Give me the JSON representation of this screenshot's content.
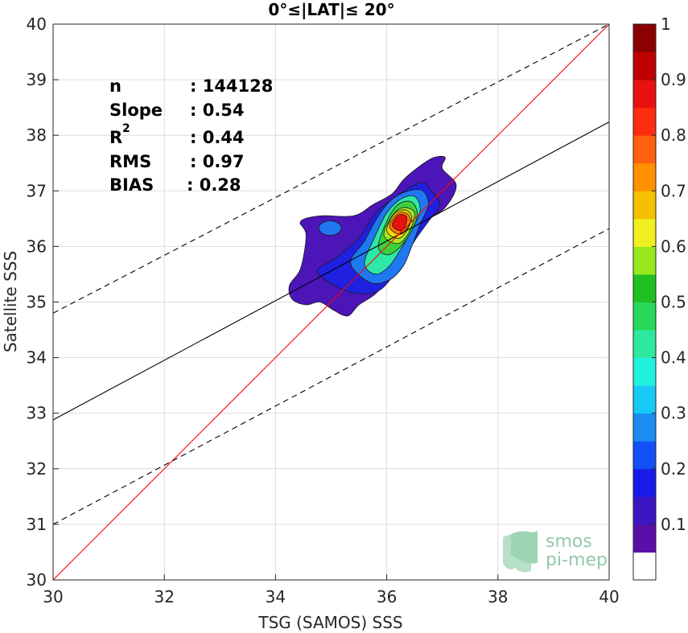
{
  "chart_data": {
    "type": "contour",
    "title": "0°≤|LAT|≤ 20°",
    "xlabel": "TSG (SAMOS) SSS",
    "ylabel": "Satellite SSS",
    "xlim": [
      30,
      40
    ],
    "ylim": [
      30,
      40
    ],
    "xticks": [
      "30",
      "32",
      "34",
      "36",
      "38",
      "40"
    ],
    "yticks": [
      "30",
      "31",
      "32",
      "33",
      "34",
      "35",
      "36",
      "37",
      "38",
      "39",
      "40"
    ],
    "grid": true,
    "stats": {
      "n_label": "n",
      "n_value": ": 144128",
      "slope_label": "Slope",
      "slope_value": ": 0.54",
      "r2_label": "R",
      "r2_sup": "2",
      "r2_value": ": 0.44",
      "rms_label": "RMS",
      "rms_value": ": 0.97",
      "bias_label": "BIAS",
      "bias_value": ": 0.28"
    },
    "lines": {
      "identity": {
        "x": [
          30,
          40
        ],
        "y": [
          30,
          40
        ],
        "color": "#ff0000"
      },
      "fit": {
        "x": [
          30,
          40
        ],
        "y": [
          32.88,
          38.24
        ],
        "color": "#000000"
      },
      "upper_bound": {
        "x": [
          30,
          40
        ],
        "y": [
          34.8,
          40.0
        ],
        "style": "dashed"
      },
      "lower_bound": {
        "x": [
          30,
          40
        ],
        "y": [
          31.0,
          36.32
        ],
        "style": "dashed"
      }
    },
    "density_contours": [
      {
        "level": 0.05,
        "color": "#4b15b7",
        "points": [
          [
            34.25,
            35.3
          ],
          [
            34.45,
            35.6
          ],
          [
            34.55,
            36.2
          ],
          [
            34.45,
            36.45
          ],
          [
            34.8,
            36.55
          ],
          [
            35.4,
            36.55
          ],
          [
            35.75,
            36.75
          ],
          [
            36.1,
            36.95
          ],
          [
            36.3,
            37.2
          ],
          [
            36.6,
            37.45
          ],
          [
            36.85,
            37.6
          ],
          [
            37.05,
            37.6
          ],
          [
            37.0,
            37.4
          ],
          [
            37.25,
            37.1
          ],
          [
            37.05,
            36.7
          ],
          [
            36.7,
            36.45
          ],
          [
            36.5,
            36.1
          ],
          [
            36.3,
            35.8
          ],
          [
            36.1,
            35.5
          ],
          [
            35.8,
            35.15
          ],
          [
            35.5,
            34.95
          ],
          [
            35.3,
            34.75
          ],
          [
            35.05,
            34.85
          ],
          [
            34.8,
            35.0
          ],
          [
            34.55,
            34.95
          ],
          [
            34.3,
            35.05
          ]
        ]
      },
      {
        "level": 0.1,
        "color": "#2020e0",
        "points": [
          [
            34.75,
            35.55
          ],
          [
            35.1,
            35.8
          ],
          [
            35.5,
            36.15
          ],
          [
            35.8,
            36.6
          ],
          [
            36.1,
            36.85
          ],
          [
            36.4,
            37.05
          ],
          [
            36.65,
            37.15
          ],
          [
            36.8,
            37.0
          ],
          [
            36.95,
            36.75
          ],
          [
            36.75,
            36.45
          ],
          [
            36.5,
            36.1
          ],
          [
            36.3,
            35.75
          ],
          [
            36.1,
            35.45
          ],
          [
            35.85,
            35.2
          ],
          [
            35.5,
            35.15
          ],
          [
            35.15,
            35.25
          ]
        ]
      },
      {
        "level": 0.2,
        "color": "#1f78f0",
        "points": [
          [
            35.35,
            35.7
          ],
          [
            35.6,
            36.1
          ],
          [
            35.85,
            36.55
          ],
          [
            36.1,
            36.85
          ],
          [
            36.4,
            37.0
          ],
          [
            36.65,
            37.0
          ],
          [
            36.75,
            36.75
          ],
          [
            36.6,
            36.4
          ],
          [
            36.45,
            36.0
          ],
          [
            36.3,
            35.65
          ],
          [
            36.05,
            35.4
          ],
          [
            35.7,
            35.35
          ]
        ]
      },
      {
        "level": 0.35,
        "color": "#2ee8a8",
        "points": [
          [
            35.6,
            35.7
          ],
          [
            35.8,
            36.2
          ],
          [
            36.0,
            36.6
          ],
          [
            36.25,
            36.85
          ],
          [
            36.5,
            36.9
          ],
          [
            36.6,
            36.65
          ],
          [
            36.45,
            36.3
          ],
          [
            36.25,
            35.95
          ],
          [
            36.05,
            35.65
          ],
          [
            35.8,
            35.5
          ]
        ]
      },
      {
        "level": 0.5,
        "color": "#3dd03d",
        "points": [
          [
            35.85,
            36.0
          ],
          [
            36.0,
            36.45
          ],
          [
            36.2,
            36.75
          ],
          [
            36.45,
            36.8
          ],
          [
            36.55,
            36.55
          ],
          [
            36.4,
            36.2
          ],
          [
            36.2,
            35.95
          ],
          [
            36.0,
            35.85
          ]
        ]
      },
      {
        "level": 0.6,
        "color": "#a8e620",
        "points": [
          [
            35.95,
            36.2
          ],
          [
            36.1,
            36.55
          ],
          [
            36.3,
            36.7
          ],
          [
            36.5,
            36.6
          ],
          [
            36.4,
            36.25
          ],
          [
            36.2,
            36.05
          ]
        ]
      },
      {
        "level": 0.7,
        "color": "#f5d90a",
        "points": [
          [
            36.0,
            36.3
          ],
          [
            36.15,
            36.6
          ],
          [
            36.35,
            36.65
          ],
          [
            36.45,
            36.5
          ],
          [
            36.3,
            36.2
          ],
          [
            36.15,
            36.15
          ]
        ]
      },
      {
        "level": 0.8,
        "color": "#ff7a00",
        "points": [
          [
            36.05,
            36.35
          ],
          [
            36.2,
            36.6
          ],
          [
            36.38,
            36.58
          ],
          [
            36.42,
            36.42
          ],
          [
            36.25,
            36.22
          ]
        ]
      },
      {
        "level": 0.9,
        "color": "#e51010",
        "points": [
          [
            36.1,
            36.4
          ],
          [
            36.22,
            36.57
          ],
          [
            36.36,
            36.52
          ],
          [
            36.3,
            36.3
          ],
          [
            36.18,
            36.3
          ]
        ]
      }
    ],
    "secondary_blob": {
      "color": "#1f78f0",
      "cx": 34.98,
      "cy": 36.33,
      "rx": 0.2,
      "ry": 0.13
    },
    "colorbar": {
      "min": 0,
      "max": 1,
      "tick_labels": [
        "0.1",
        "0.2",
        "0.3",
        "0.4",
        "0.5",
        "0.6",
        "0.7",
        "0.8",
        "0.9",
        "1"
      ],
      "bands": [
        "#ffffff",
        "#5c0fa8",
        "#3a17c0",
        "#1a1ae8",
        "#1250f5",
        "#1c8cf5",
        "#18c8f5",
        "#20f0e0",
        "#2ee8a0",
        "#28d85a",
        "#20c020",
        "#98e820",
        "#f0f020",
        "#f5c000",
        "#ff9000",
        "#ff6010",
        "#ff2d10",
        "#e81010",
        "#c00000",
        "#8b0000"
      ]
    }
  },
  "watermark": {
    "line1": "smos",
    "line2": "pi-mep",
    "color": "#6db88f"
  }
}
